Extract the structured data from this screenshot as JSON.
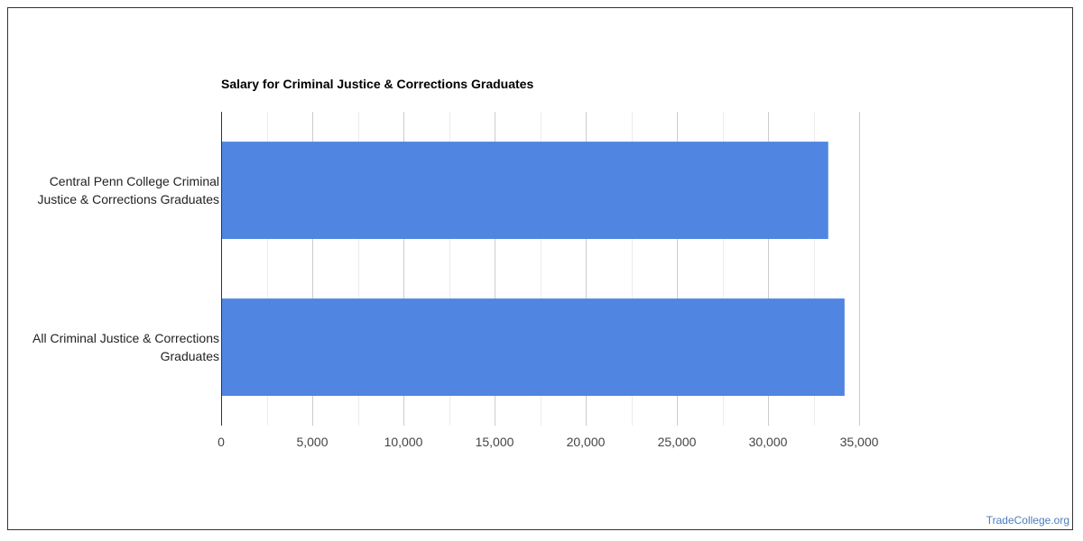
{
  "chart_data": {
    "type": "bar",
    "orientation": "horizontal",
    "title": "Salary for Criminal Justice & Corrections Graduates",
    "xlabel": "",
    "ylabel": "",
    "categories": [
      [
        "Central Penn College Criminal",
        "Justice & Corrections Graduates"
      ],
      [
        "All Criminal Justice & Corrections",
        "Graduates"
      ]
    ],
    "values": [
      33300,
      34200
    ],
    "xlim": [
      0,
      35000
    ],
    "xticks": [
      0,
      5000,
      10000,
      15000,
      20000,
      25000,
      30000,
      35000
    ],
    "xtick_labels": [
      "0",
      "5,000",
      "10,000",
      "15,000",
      "20,000",
      "25,000",
      "30,000",
      "35,000"
    ],
    "grid": true,
    "legend": "none",
    "bar_color": "#5085e1"
  },
  "watermark": "TradeCollege.org"
}
